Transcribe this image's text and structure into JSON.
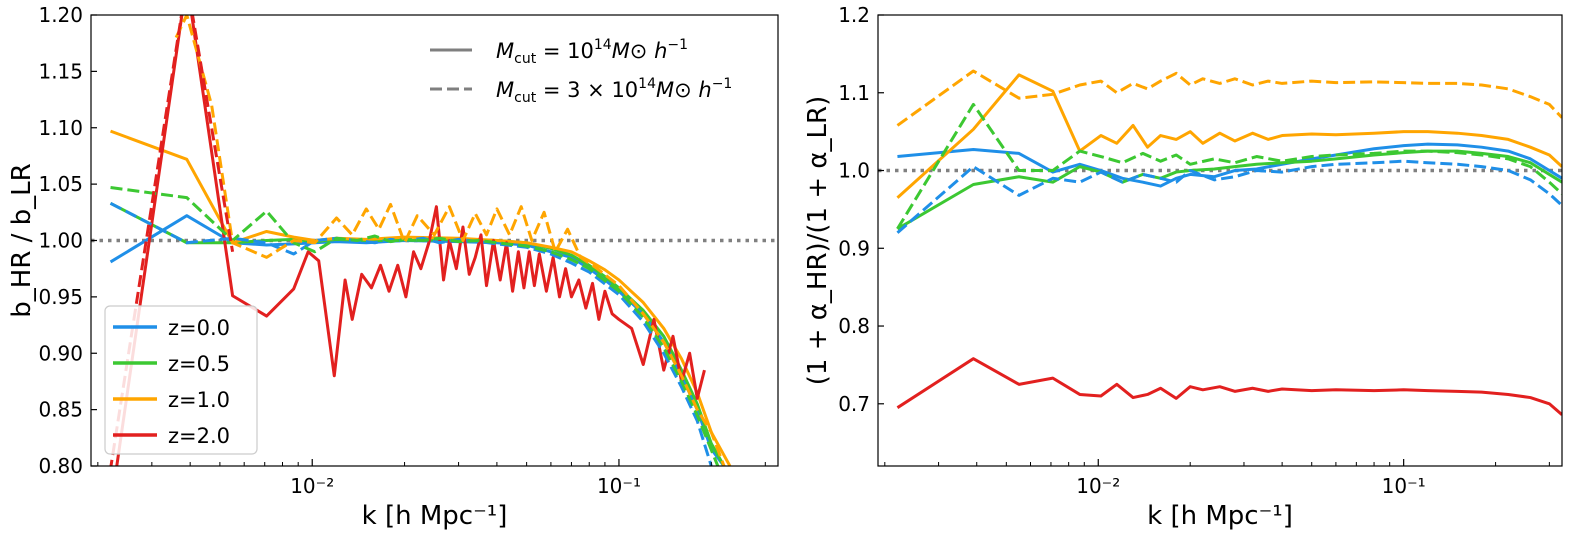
{
  "colors": {
    "z0": "#1f8fe8",
    "z05": "#3cc832",
    "z1": "#ffa500",
    "z2": "#e2201f",
    "reference": "#808080",
    "legend_style": "#7f7f7f"
  },
  "chart_data": [
    {
      "type": "line",
      "xscale": "log",
      "xlim": [
        0.0019,
        0.33
      ],
      "ylim": [
        0.8,
        1.2
      ],
      "xlabel": "k [h Mpc⁻¹]",
      "ylabel": "b_HR / b_LR",
      "y_ticks": [
        "0.80",
        "0.85",
        "0.90",
        "0.95",
        "1.00",
        "1.05",
        "1.10",
        "1.15",
        "1.20"
      ],
      "x_ticks": [
        "10⁻²",
        "10⁻¹"
      ],
      "reference_line": 1.0,
      "style_legend": {
        "placement": "top-right",
        "entries": [
          {
            "style": "solid",
            "label_pre": "M",
            "label_sub": "cut",
            "label_mid": " = 10",
            "label_sup": "14",
            "label_post": "M⊙ h",
            "label_sup2": "−1"
          },
          {
            "style": "dashed",
            "label_pre": "M",
            "label_sub": "cut",
            "label_mid": " = 3 × 10",
            "label_sup": "14",
            "label_post": "M⊙ h",
            "label_sup2": "−1"
          }
        ]
      },
      "color_legend": {
        "placement": "lower-left",
        "entries": [
          "z=0.0",
          "z=0.5",
          "z=1.0",
          "z=2.0"
        ]
      },
      "series": [
        {
          "name": "z=0.0",
          "style": "solid",
          "color": "#1f8fe8",
          "x": [
            0.0022,
            0.0039,
            0.0055,
            0.0071,
            0.0087,
            0.0102,
            0.012,
            0.015,
            0.02,
            0.03,
            0.04,
            0.05,
            0.06,
            0.07,
            0.08,
            0.09,
            0.1,
            0.12,
            0.14,
            0.16,
            0.18,
            0.2,
            0.22
          ],
          "y": [
            0.981,
            1.022,
            0.998,
            0.996,
            0.997,
            0.998,
            0.999,
            0.998,
            1.0,
            0.999,
            0.998,
            0.996,
            0.99,
            0.985,
            0.975,
            0.965,
            0.955,
            0.935,
            0.91,
            0.88,
            0.85,
            0.815,
            0.8
          ]
        },
        {
          "name": "z=0.5",
          "style": "solid",
          "color": "#3cc832",
          "x": [
            0.0022,
            0.0039,
            0.0055,
            0.0071,
            0.0087,
            0.0102,
            0.012,
            0.015,
            0.02,
            0.03,
            0.04,
            0.05,
            0.06,
            0.07,
            0.08,
            0.09,
            0.1,
            0.12,
            0.14,
            0.16,
            0.18,
            0.2,
            0.22
          ],
          "y": [
            1.033,
            0.998,
            0.998,
            1.0,
            1.001,
            0.999,
            1.001,
            1.0,
            1.0,
            1.001,
            1.0,
            0.998,
            0.993,
            0.987,
            0.978,
            0.968,
            0.958,
            0.938,
            0.915,
            0.885,
            0.855,
            0.82,
            0.8
          ]
        },
        {
          "name": "z=1.0",
          "style": "solid",
          "color": "#ffa500",
          "x": [
            0.0022,
            0.0039,
            0.0055,
            0.0071,
            0.0087,
            0.0102,
            0.012,
            0.015,
            0.02,
            0.03,
            0.04,
            0.05,
            0.06,
            0.07,
            0.08,
            0.09,
            0.1,
            0.12,
            0.14,
            0.16,
            0.18,
            0.2,
            0.23
          ],
          "y": [
            1.097,
            1.072,
            0.998,
            1.008,
            1.003,
            1.0,
            1.002,
            1.001,
            1.003,
            1.002,
            1.0,
            0.998,
            0.994,
            0.99,
            0.982,
            0.974,
            0.965,
            0.945,
            0.922,
            0.895,
            0.865,
            0.83,
            0.8
          ]
        },
        {
          "name": "z=2.0",
          "style": "solid",
          "color": "#e2201f",
          "x": [
            0.00225,
            0.0039,
            0.0055,
            0.0071,
            0.0087,
            0.0097,
            0.0105,
            0.0118,
            0.0128,
            0.0135,
            0.0145,
            0.0156,
            0.0167,
            0.0178,
            0.019,
            0.0202,
            0.0214,
            0.0226,
            0.024,
            0.0254,
            0.0268,
            0.028,
            0.0295,
            0.031,
            0.0325,
            0.034,
            0.0355,
            0.037,
            0.039,
            0.041,
            0.043,
            0.045,
            0.047,
            0.049,
            0.051,
            0.053,
            0.055,
            0.058,
            0.061,
            0.064,
            0.067,
            0.07,
            0.074,
            0.078,
            0.082,
            0.086,
            0.09,
            0.095,
            0.1,
            0.11,
            0.12,
            0.13,
            0.14,
            0.15,
            0.16,
            0.17,
            0.18,
            0.19
          ],
          "y": [
            0.78,
            1.23,
            0.951,
            0.933,
            0.957,
            0.99,
            0.982,
            0.88,
            0.965,
            0.93,
            0.97,
            0.958,
            0.978,
            0.955,
            0.978,
            0.95,
            0.99,
            0.975,
            0.998,
            1.03,
            0.965,
            1.0,
            0.975,
            1.012,
            0.97,
            0.985,
            1.005,
            0.96,
            1.0,
            0.965,
            0.998,
            0.955,
            0.99,
            0.958,
            0.99,
            0.96,
            0.988,
            0.955,
            0.985,
            0.95,
            0.975,
            0.95,
            0.965,
            0.94,
            0.962,
            0.93,
            0.955,
            0.935,
            0.93,
            0.922,
            0.89,
            0.93,
            0.885,
            0.915,
            0.875,
            0.9,
            0.86,
            0.885
          ]
        },
        {
          "name": "z=0.0",
          "style": "dashed",
          "color": "#1f8fe8",
          "x": [
            0.0022,
            0.0039,
            0.0055,
            0.0071,
            0.0087,
            0.0102,
            0.012,
            0.014,
            0.016,
            0.018,
            0.02,
            0.023,
            0.026,
            0.03,
            0.035,
            0.04,
            0.05,
            0.06,
            0.07,
            0.08,
            0.1,
            0.12,
            0.14,
            0.16,
            0.18,
            0.2
          ],
          "y": [
            1.033,
            0.998,
            1.002,
            0.998,
            0.988,
            1.0,
            1.002,
            1.0,
            0.998,
            1.001,
            1.0,
            1.002,
            0.998,
            1.001,
            0.999,
            0.997,
            0.994,
            0.988,
            0.98,
            0.972,
            0.952,
            0.928,
            0.9,
            0.87,
            0.84,
            0.8
          ]
        },
        {
          "name": "z=0.5",
          "style": "dashed",
          "color": "#3cc832",
          "x": [
            0.0022,
            0.0039,
            0.0055,
            0.0071,
            0.0087,
            0.0102,
            0.012,
            0.014,
            0.016,
            0.018,
            0.02,
            0.023,
            0.026,
            0.03,
            0.035,
            0.04,
            0.05,
            0.06,
            0.07,
            0.08,
            0.1,
            0.12,
            0.14,
            0.16,
            0.18,
            0.21
          ],
          "y": [
            1.047,
            1.038,
            1.0,
            1.026,
            0.998,
            0.99,
            1.002,
            1.0,
            1.004,
            0.999,
            1.001,
            1.0,
            1.002,
            0.999,
            1.0,
            0.998,
            0.995,
            0.99,
            0.983,
            0.975,
            0.955,
            0.932,
            0.905,
            0.875,
            0.845,
            0.8
          ]
        },
        {
          "name": "z=1.0",
          "style": "dashed",
          "color": "#ffa500",
          "x": [
            0.0036,
            0.0039,
            0.0047,
            0.0055,
            0.0071,
            0.0087,
            0.0102,
            0.012,
            0.0135,
            0.015,
            0.0165,
            0.018,
            0.02,
            0.022,
            0.025,
            0.028,
            0.031,
            0.034,
            0.037,
            0.04,
            0.044,
            0.048,
            0.052,
            0.057,
            0.062,
            0.068,
            0.075,
            0.085,
            0.1,
            0.12,
            0.14,
            0.16,
            0.18,
            0.2,
            0.22
          ],
          "y": [
            1.18,
            1.2,
            1.12,
            0.998,
            0.985,
            1.0,
            0.998,
            1.02,
            1.005,
            1.028,
            1.01,
            1.032,
            0.998,
            1.022,
            1.005,
            1.03,
            1.0,
            1.024,
            1.005,
            1.028,
            1.005,
            1.03,
            1.0,
            1.025,
            0.99,
            1.01,
            0.985,
            0.975,
            0.96,
            0.935,
            0.91,
            0.88,
            0.85,
            0.83,
            0.8
          ]
        },
        {
          "name": "z=2.0",
          "style": "dashed",
          "color": "#e2201f",
          "x": [
            0.00215,
            0.0039,
            0.0055
          ],
          "y": [
            0.78,
            1.23,
            0.99
          ]
        }
      ]
    },
    {
      "type": "line",
      "xscale": "log",
      "xlim": [
        0.0019,
        0.33
      ],
      "ylim": [
        0.62,
        1.2
      ],
      "xlabel": "k [h Mpc⁻¹]",
      "ylabel": "(1 + α_HR)/(1 + α_LR)",
      "y_ticks": [
        "0.7",
        "0.8",
        "0.9",
        "1.0",
        "1.1",
        "1.2"
      ],
      "x_ticks": [
        "10⁻²",
        "10⁻¹"
      ],
      "reference_line": 1.0,
      "series": [
        {
          "name": "z=0.0",
          "style": "solid",
          "color": "#1f8fe8",
          "x": [
            0.0022,
            0.0039,
            0.0055,
            0.0071,
            0.0087,
            0.0102,
            0.012,
            0.014,
            0.016,
            0.018,
            0.02,
            0.024,
            0.028,
            0.033,
            0.04,
            0.05,
            0.06,
            0.08,
            0.1,
            0.12,
            0.15,
            0.18,
            0.22,
            0.26,
            0.3,
            0.33
          ],
          "y": [
            1.018,
            1.027,
            1.022,
            0.998,
            1.008,
            1.0,
            0.99,
            0.985,
            0.98,
            0.99,
            0.995,
            0.992,
            1.0,
            1.002,
            1.008,
            1.015,
            1.02,
            1.028,
            1.032,
            1.034,
            1.033,
            1.03,
            1.025,
            1.015,
            1.0,
            0.99
          ]
        },
        {
          "name": "z=0.5",
          "style": "solid",
          "color": "#3cc832",
          "x": [
            0.0022,
            0.0039,
            0.0055,
            0.0071,
            0.0087,
            0.0102,
            0.012,
            0.014,
            0.016,
            0.018,
            0.02,
            0.024,
            0.028,
            0.033,
            0.04,
            0.05,
            0.06,
            0.08,
            0.1,
            0.12,
            0.15,
            0.18,
            0.22,
            0.26,
            0.3,
            0.33
          ],
          "y": [
            0.925,
            0.982,
            0.992,
            0.985,
            1.005,
            0.998,
            0.985,
            0.995,
            0.99,
            0.998,
            1.0,
            1.002,
            1.005,
            1.008,
            1.01,
            1.012,
            1.015,
            1.02,
            1.023,
            1.025,
            1.025,
            1.022,
            1.018,
            1.01,
            0.995,
            0.985
          ]
        },
        {
          "name": "z=1.0",
          "style": "solid",
          "color": "#ffa500",
          "x": [
            0.0022,
            0.0039,
            0.0055,
            0.0071,
            0.0087,
            0.0102,
            0.0115,
            0.013,
            0.0145,
            0.016,
            0.018,
            0.02,
            0.022,
            0.025,
            0.028,
            0.032,
            0.036,
            0.04,
            0.05,
            0.06,
            0.08,
            0.1,
            0.12,
            0.15,
            0.18,
            0.22,
            0.26,
            0.3,
            0.33
          ],
          "y": [
            0.965,
            1.053,
            1.123,
            1.102,
            1.025,
            1.045,
            1.035,
            1.058,
            1.03,
            1.045,
            1.04,
            1.05,
            1.035,
            1.048,
            1.038,
            1.048,
            1.04,
            1.045,
            1.047,
            1.046,
            1.048,
            1.05,
            1.05,
            1.048,
            1.045,
            1.04,
            1.03,
            1.02,
            1.005
          ]
        },
        {
          "name": "z=2.0",
          "style": "solid",
          "color": "#e2201f",
          "x": [
            0.0022,
            0.0039,
            0.0055,
            0.0071,
            0.0087,
            0.0102,
            0.0115,
            0.013,
            0.0145,
            0.016,
            0.018,
            0.02,
            0.022,
            0.025,
            0.028,
            0.032,
            0.036,
            0.04,
            0.05,
            0.06,
            0.08,
            0.1,
            0.12,
            0.15,
            0.18,
            0.22,
            0.26,
            0.3,
            0.33
          ],
          "y": [
            0.695,
            0.758,
            0.725,
            0.733,
            0.712,
            0.71,
            0.725,
            0.708,
            0.712,
            0.72,
            0.707,
            0.722,
            0.718,
            0.722,
            0.716,
            0.72,
            0.716,
            0.719,
            0.717,
            0.718,
            0.717,
            0.718,
            0.717,
            0.716,
            0.715,
            0.712,
            0.708,
            0.7,
            0.686
          ]
        },
        {
          "name": "z=0.0",
          "style": "dashed",
          "color": "#1f8fe8",
          "x": [
            0.0022,
            0.0039,
            0.0055,
            0.0071,
            0.0087,
            0.0102,
            0.012,
            0.014,
            0.016,
            0.018,
            0.02,
            0.024,
            0.028,
            0.033,
            0.04,
            0.05,
            0.06,
            0.08,
            0.1,
            0.12,
            0.15,
            0.18,
            0.22,
            0.26,
            0.3,
            0.33
          ],
          "y": [
            0.92,
            1.005,
            0.968,
            0.99,
            0.985,
            0.998,
            0.985,
            0.995,
            0.99,
            0.985,
            1.0,
            0.988,
            0.992,
            1.0,
            0.998,
            1.005,
            1.008,
            1.01,
            1.012,
            1.01,
            1.008,
            1.005,
            1.0,
            0.988,
            0.97,
            0.955
          ]
        },
        {
          "name": "z=0.5",
          "style": "dashed",
          "color": "#3cc832",
          "x": [
            0.0022,
            0.0039,
            0.0055,
            0.0071,
            0.0087,
            0.0102,
            0.012,
            0.014,
            0.016,
            0.018,
            0.02,
            0.024,
            0.028,
            0.033,
            0.04,
            0.05,
            0.06,
            0.08,
            0.1,
            0.12,
            0.15,
            0.18,
            0.22,
            0.26,
            0.3,
            0.33
          ],
          "y": [
            0.925,
            1.085,
            1.0,
            1.0,
            1.025,
            1.018,
            1.01,
            1.022,
            1.012,
            1.02,
            1.008,
            1.015,
            1.01,
            1.018,
            1.012,
            1.018,
            1.02,
            1.022,
            1.025,
            1.025,
            1.023,
            1.02,
            1.015,
            1.005,
            0.985,
            0.97
          ]
        },
        {
          "name": "z=1.0",
          "style": "dashed",
          "color": "#ffa500",
          "x": [
            0.0022,
            0.0039,
            0.0055,
            0.0071,
            0.0087,
            0.0102,
            0.0115,
            0.013,
            0.0145,
            0.016,
            0.018,
            0.02,
            0.022,
            0.025,
            0.028,
            0.032,
            0.036,
            0.04,
            0.05,
            0.06,
            0.08,
            0.1,
            0.12,
            0.15,
            0.18,
            0.22,
            0.26,
            0.3,
            0.33
          ],
          "y": [
            1.058,
            1.128,
            1.093,
            1.098,
            1.11,
            1.115,
            1.1,
            1.112,
            1.105,
            1.115,
            1.125,
            1.11,
            1.118,
            1.112,
            1.118,
            1.11,
            1.115,
            1.112,
            1.115,
            1.113,
            1.114,
            1.113,
            1.112,
            1.112,
            1.11,
            1.105,
            1.095,
            1.085,
            1.068
          ]
        }
      ]
    }
  ]
}
